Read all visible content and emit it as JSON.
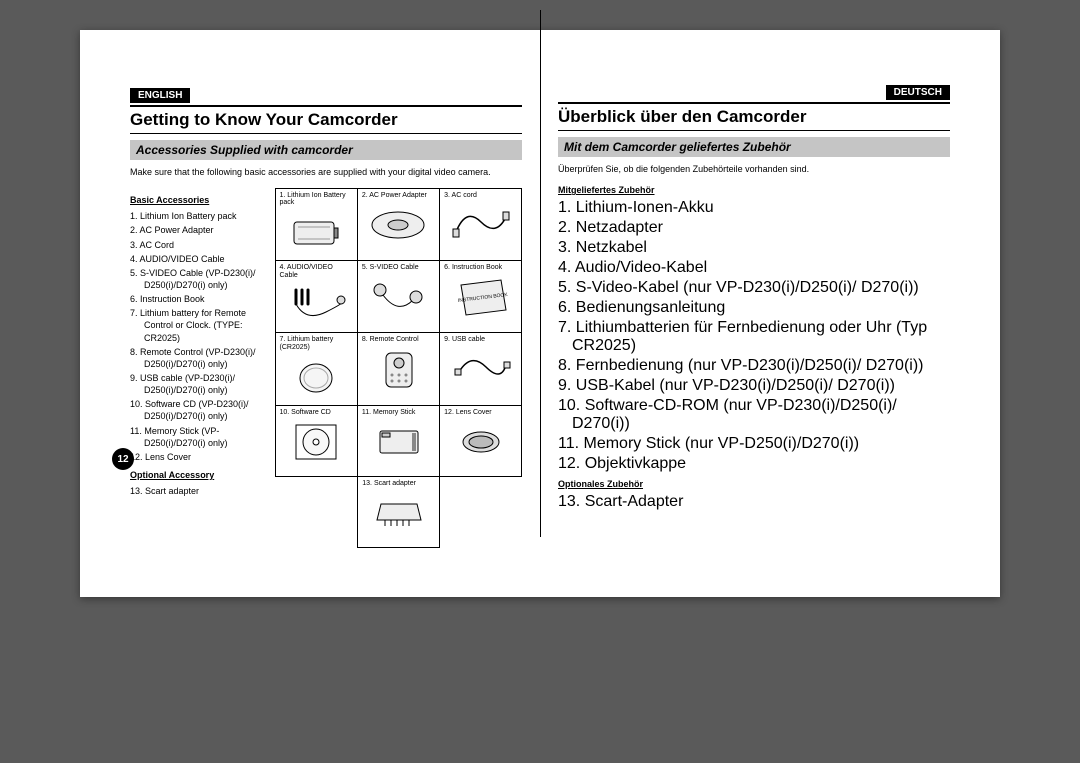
{
  "page_number": "12",
  "en": {
    "lang": "ENGLISH",
    "heading": "Getting to Know Your Camcorder",
    "subheading": "Accessories Supplied with camcorder",
    "intro": "Make sure that the following basic accessories are supplied with your digital video camera.",
    "basic_label": "Basic Accessories",
    "basic_items": [
      "1. Lithium Ion Battery pack",
      "2. AC Power Adapter",
      "3. AC Cord",
      "4. AUDIO/VIDEO Cable",
      "5. S-VIDEO Cable (VP-D230(i)/ D250(i)/D270(i) only)",
      "6. Instruction Book",
      "7. Lithium battery for Remote Control or Clock. (TYPE: CR2025)",
      "8. Remote Control (VP-D230(i)/ D250(i)/D270(i) only)",
      "9. USB cable (VP-D230(i)/ D250(i)/D270(i) only)",
      "10. Software CD (VP-D230(i)/ D250(i)/D270(i) only)",
      "11. Memory Stick (VP-D250(i)/D270(i) only)",
      "12. Lens Cover"
    ],
    "optional_label": "Optional Accessory",
    "optional_items": [
      "13. Scart adapter"
    ]
  },
  "de": {
    "lang": "DEUTSCH",
    "heading": "Überblick über den Camcorder",
    "subheading": "Mit dem Camcorder geliefertes Zubehör",
    "intro": "Überprüfen Sie, ob die folgenden Zubehörteile vorhanden sind.",
    "basic_label": "Mitgeliefertes Zubehör",
    "basic_items": [
      "1. Lithium-Ionen-Akku",
      "2. Netzadapter",
      "3. Netzkabel",
      "4. Audio/Video-Kabel",
      "5. S-Video-Kabel (nur VP-D230(i)/D250(i)/ D270(i))",
      "6. Bedienungsanleitung",
      "7. Lithiumbatterien für Fernbedienung oder Uhr (Typ CR2025)",
      "8. Fernbedienung (nur VP-D230(i)/D250(i)/ D270(i))",
      "9. USB-Kabel (nur VP-D230(i)/D250(i)/ D270(i))",
      "10. Software-CD-ROM (nur VP-D230(i)/D250(i)/ D270(i))",
      "11. Memory Stick (nur VP-D250(i)/D270(i))",
      "12. Objektivkappe"
    ],
    "optional_label": "Optionales Zubehör",
    "optional_items": [
      "13. Scart-Adapter"
    ]
  },
  "grid": [
    [
      {
        "label": "1. Lithium Ion Battery pack",
        "icon": "battery"
      },
      {
        "label": "2. AC Power Adapter",
        "icon": "adapter"
      },
      {
        "label": "3. AC cord",
        "icon": "cord"
      }
    ],
    [
      {
        "label": "4. AUDIO/VIDEO Cable",
        "icon": "avcable"
      },
      {
        "label": "5. S-VIDEO Cable",
        "icon": "svideo"
      },
      {
        "label": "6. Instruction Book",
        "icon": "book"
      }
    ],
    [
      {
        "label": "7. Lithium battery (CR2025)",
        "icon": "coin"
      },
      {
        "label": "8. Remote Control",
        "icon": "remote"
      },
      {
        "label": "9. USB cable",
        "icon": "usb"
      }
    ],
    [
      {
        "label": "10. Software CD",
        "icon": "cd"
      },
      {
        "label": "11. Memory Stick",
        "icon": "mstick"
      },
      {
        "label": "12. Lens Cover",
        "icon": "lenscap"
      }
    ],
    [
      {
        "label": "13. Scart adapter",
        "icon": "scart"
      }
    ]
  ],
  "colors": {
    "page_bg": "#ffffff",
    "body_bg": "#5a5a5a",
    "sub_bg": "#c5c5c5",
    "badge_bg": "#000000",
    "line": "#000000"
  }
}
